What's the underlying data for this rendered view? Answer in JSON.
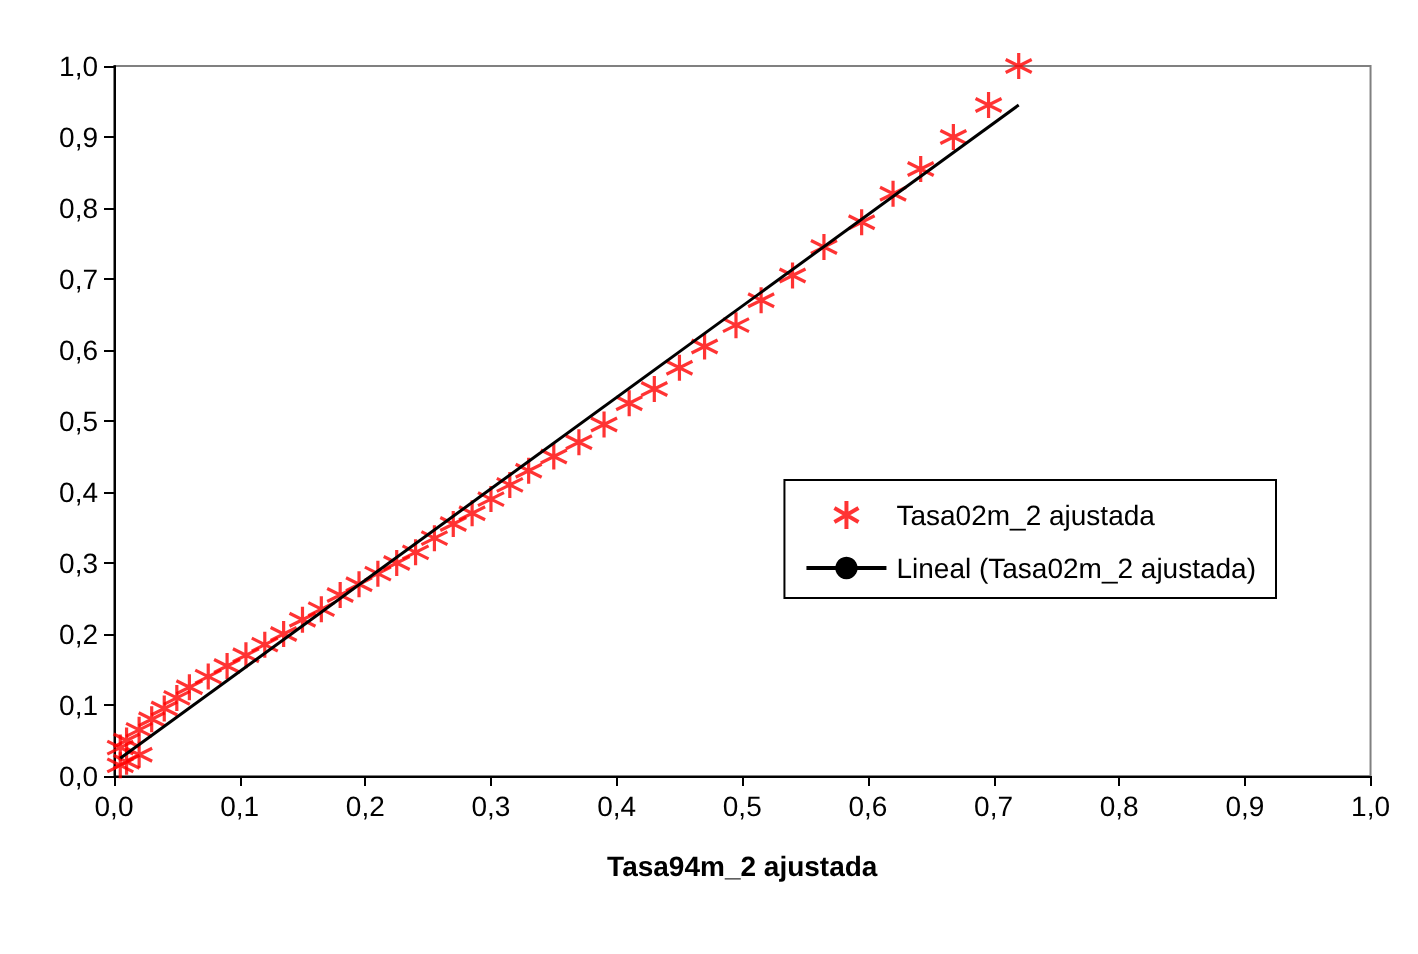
{
  "chart_data": {
    "type": "scatter",
    "xlabel": "Tasa94m_2 ajustada",
    "xlim": [
      0,
      1
    ],
    "ylim": [
      0,
      1
    ],
    "xticks": [
      {
        "value": 0,
        "label": "0,0"
      },
      {
        "value": 0.1,
        "label": "0,1"
      },
      {
        "value": 0.2,
        "label": "0,2"
      },
      {
        "value": 0.3,
        "label": "0,3"
      },
      {
        "value": 0.4,
        "label": "0,4"
      },
      {
        "value": 0.5,
        "label": "0,5"
      },
      {
        "value": 0.6,
        "label": "0,6"
      },
      {
        "value": 0.7,
        "label": "0,7"
      },
      {
        "value": 0.8,
        "label": "0,8"
      },
      {
        "value": 0.9,
        "label": "0,9"
      },
      {
        "value": 1,
        "label": "1,0"
      }
    ],
    "yticks": [
      {
        "value": 0,
        "label": "0,0"
      },
      {
        "value": 0.1,
        "label": "0,1"
      },
      {
        "value": 0.2,
        "label": "0,2"
      },
      {
        "value": 0.3,
        "label": "0,3"
      },
      {
        "value": 0.4,
        "label": "0,4"
      },
      {
        "value": 0.5,
        "label": "0,5"
      },
      {
        "value": 0.6,
        "label": "0,6"
      },
      {
        "value": 0.7,
        "label": "0,7"
      },
      {
        "value": 0.8,
        "label": "0,8"
      },
      {
        "value": 0.9,
        "label": "0,9"
      },
      {
        "value": 1,
        "label": "1,0"
      }
    ],
    "grid": false,
    "legend": "right",
    "series": [
      {
        "name": "Tasa02m_2 ajustada",
        "marker": "cross",
        "color": "#ff0000",
        "x": [
          0.005,
          0.01,
          0.02,
          0.005,
          0.01,
          0.02,
          0.03,
          0.04,
          0.05,
          0.06,
          0.075,
          0.09,
          0.105,
          0.12,
          0.135,
          0.15,
          0.165,
          0.18,
          0.195,
          0.21,
          0.225,
          0.24,
          0.255,
          0.27,
          0.285,
          0.3,
          0.315,
          0.33,
          0.35,
          0.37,
          0.39,
          0.41,
          0.43,
          0.45,
          0.47,
          0.495,
          0.515,
          0.54,
          0.565,
          0.595,
          0.62,
          0.642,
          0.668,
          0.696,
          0.72
        ],
        "values": [
          0.015,
          0.02,
          0.03,
          0.04,
          0.05,
          0.065,
          0.08,
          0.095,
          0.11,
          0.125,
          0.14,
          0.155,
          0.17,
          0.185,
          0.2,
          0.22,
          0.235,
          0.255,
          0.27,
          0.285,
          0.3,
          0.315,
          0.335,
          0.355,
          0.37,
          0.39,
          0.41,
          0.43,
          0.45,
          0.47,
          0.495,
          0.525,
          0.545,
          0.575,
          0.605,
          0.635,
          0.67,
          0.705,
          0.745,
          0.78,
          0.82,
          0.855,
          0.9,
          0.945,
          1.0
        ]
      },
      {
        "name": "Lineal (Tasa02m_2 ajustada)",
        "type": "line",
        "color": "#000000",
        "line_style": "solid",
        "x": [
          0.005,
          0.72
        ],
        "values": [
          0.025,
          0.945
        ]
      }
    ]
  }
}
